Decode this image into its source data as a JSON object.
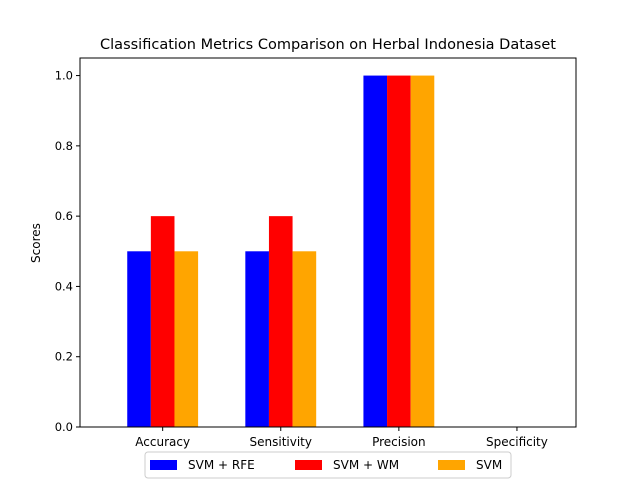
{
  "chart_data": {
    "type": "bar",
    "title": "Classification Metrics Comparison on Herbal Indonesia Dataset",
    "xlabel": "",
    "ylabel": "Scores",
    "categories": [
      "Accuracy",
      "Sensitivity",
      "Precision",
      "Specificity"
    ],
    "series": [
      {
        "name": "SVM + RFE",
        "color": "#0000ff",
        "values": [
          0.5,
          0.5,
          1.0,
          0.0
        ]
      },
      {
        "name": "SVM + WM",
        "color": "#ff0000",
        "values": [
          0.6,
          0.6,
          1.0,
          0.0
        ]
      },
      {
        "name": "SVM",
        "color": "#ffa500",
        "values": [
          0.5,
          0.5,
          1.0,
          0.0
        ]
      }
    ],
    "ylim": [
      0,
      1.05
    ],
    "yticks": [
      0.0,
      0.2,
      0.4,
      0.6,
      0.8,
      1.0
    ],
    "ytick_labels": [
      "0.0",
      "0.2",
      "0.4",
      "0.6",
      "0.8",
      "1.0"
    ],
    "grid": false,
    "legend_placement": "bottom-center"
  }
}
